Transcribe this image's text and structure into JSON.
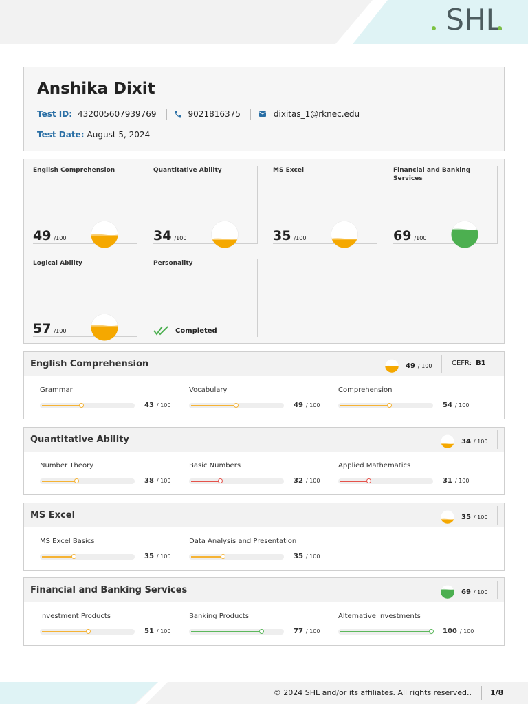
{
  "brand": {
    "logo_text": "SHL"
  },
  "candidate": {
    "name": "Anshika Dixit",
    "test_id_label": "Test ID:",
    "test_id": "432005607939769",
    "phone": "9021816375",
    "email": "dixitas_1@rknec.edu",
    "test_date_label": "Test Date:",
    "test_date": "August 5, 2024"
  },
  "score_cards": [
    {
      "name": "English Comprehension",
      "score": "49",
      "max": "/100",
      "fraction": 0.49,
      "color": "#f5a800"
    },
    {
      "name": "Quantitative Ability",
      "score": "34",
      "max": "/100",
      "fraction": 0.34,
      "color": "#f5a800"
    },
    {
      "name": "MS Excel",
      "score": "35",
      "max": "/100",
      "fraction": 0.35,
      "color": "#f5a800"
    },
    {
      "name": "Financial and Banking Services",
      "score": "69",
      "max": "/100",
      "fraction": 0.69,
      "color": "#4caf50"
    },
    {
      "name": "Logical Ability",
      "score": "57",
      "max": "/100",
      "fraction": 0.57,
      "color": "#f5a800"
    },
    {
      "name": "Personality",
      "status": "Completed"
    }
  ],
  "sections": [
    {
      "title": "English Comprehension",
      "score": "49",
      "max": "/ 100",
      "fraction": 0.49,
      "color": "#f5a800",
      "cefr_label": "CEFR:",
      "cefr_value": "B1",
      "subs": [
        {
          "name": "Grammar",
          "score": "43",
          "max": "/ 100",
          "value": 43,
          "color": "#f5b335"
        },
        {
          "name": "Vocabulary",
          "score": "49",
          "max": "/ 100",
          "value": 49,
          "color": "#f5b335"
        },
        {
          "name": "Comprehension",
          "score": "54",
          "max": "/ 100",
          "value": 54,
          "color": "#f5b335"
        }
      ]
    },
    {
      "title": "Quantitative Ability",
      "score": "34",
      "max": "/ 100",
      "fraction": 0.34,
      "color": "#f5a800",
      "subs": [
        {
          "name": "Number Theory",
          "score": "38",
          "max": "/ 100",
          "value": 38,
          "color": "#f5b335"
        },
        {
          "name": "Basic Numbers",
          "score": "32",
          "max": "/ 100",
          "value": 32,
          "color": "#e5534b"
        },
        {
          "name": "Applied Mathematics",
          "score": "31",
          "max": "/ 100",
          "value": 31,
          "color": "#e5534b"
        }
      ]
    },
    {
      "title": "MS Excel",
      "score": "35",
      "max": "/ 100",
      "fraction": 0.35,
      "color": "#f5a800",
      "subs": [
        {
          "name": "MS Excel Basics",
          "score": "35",
          "max": "/ 100",
          "value": 35,
          "color": "#f5b335"
        },
        {
          "name": "Data Analysis and Presentation",
          "score": "35",
          "max": "/ 100",
          "value": 35,
          "color": "#f5b335"
        }
      ]
    },
    {
      "title": "Financial and Banking Services",
      "score": "69",
      "max": "/ 100",
      "fraction": 0.69,
      "color": "#4caf50",
      "subs": [
        {
          "name": "Investment Products",
          "score": "51",
          "max": "/ 100",
          "value": 51,
          "color": "#f5b335"
        },
        {
          "name": "Banking Products",
          "score": "77",
          "max": "/ 100",
          "value": 77,
          "color": "#5cb85c"
        },
        {
          "name": "Alternative Investments",
          "score": "100",
          "max": "/ 100",
          "value": 100,
          "color": "#5cb85c"
        }
      ]
    }
  ],
  "footer": {
    "copyright": "© 2024 SHL and/or its affiliates. All rights reserved..",
    "page": "1/8"
  }
}
